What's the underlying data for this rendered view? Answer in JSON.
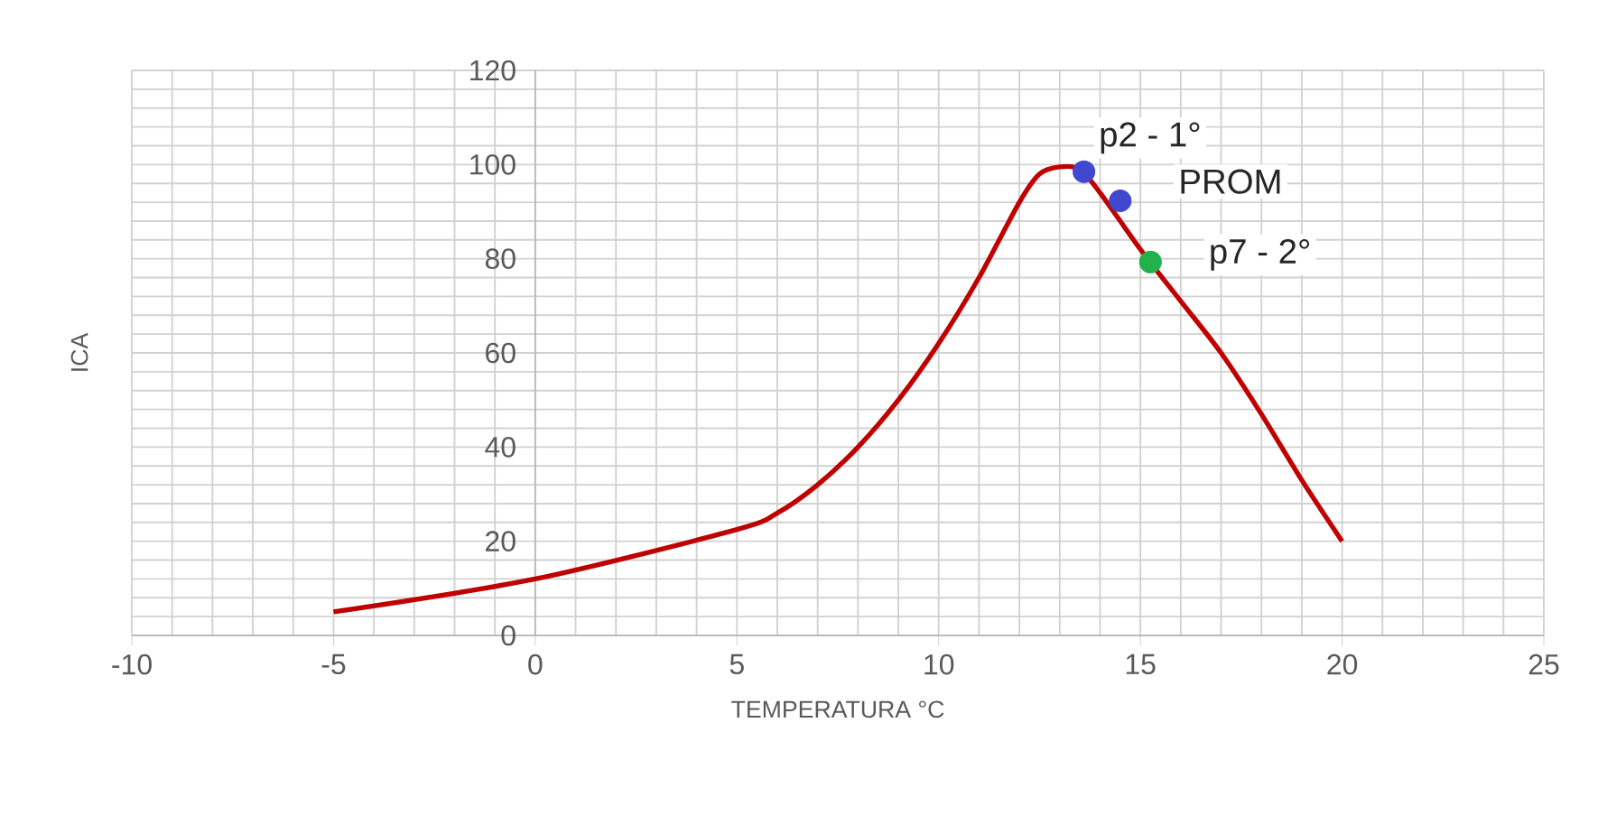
{
  "chart_data": {
    "type": "line",
    "xlabel": "TEMPERATURA °C",
    "ylabel": "ICA",
    "xlim": [
      -10,
      25
    ],
    "xticks": [
      -10,
      -5,
      0,
      5,
      10,
      15,
      20,
      25
    ],
    "ylim": [
      0,
      120
    ],
    "yticks": [
      0,
      20,
      40,
      60,
      80,
      100,
      120
    ],
    "grid": true,
    "series": [
      {
        "color": "#c00000",
        "line_style": "solid",
        "x": [
          -5,
          0,
          5,
          6,
          7,
          8,
          9,
          10,
          11,
          12,
          12.5,
          13,
          13.5,
          14,
          15,
          16,
          17,
          18,
          19,
          20
        ],
        "values": [
          5,
          12,
          22.5,
          26,
          32,
          40,
          50,
          62,
          76,
          92,
          98,
          99.5,
          99,
          94,
          82,
          71,
          60,
          47,
          33,
          20
        ]
      },
      {
        "type": "scatter",
        "x": [
          13.6,
          14.5,
          15.25
        ],
        "values": [
          98.5,
          92.3,
          79.3
        ],
        "colors": [
          "#4048d0",
          "#4048d0",
          "#22b14c"
        ]
      }
    ],
    "annotations": [
      {
        "text": "p2 - 1°",
        "x": 13.6,
        "y": 98.5
      },
      {
        "text": "PROM",
        "x": 14.5,
        "y": 92.3
      },
      {
        "text": "p7 - 2°",
        "x": 15.25,
        "y": 79.3
      }
    ]
  }
}
